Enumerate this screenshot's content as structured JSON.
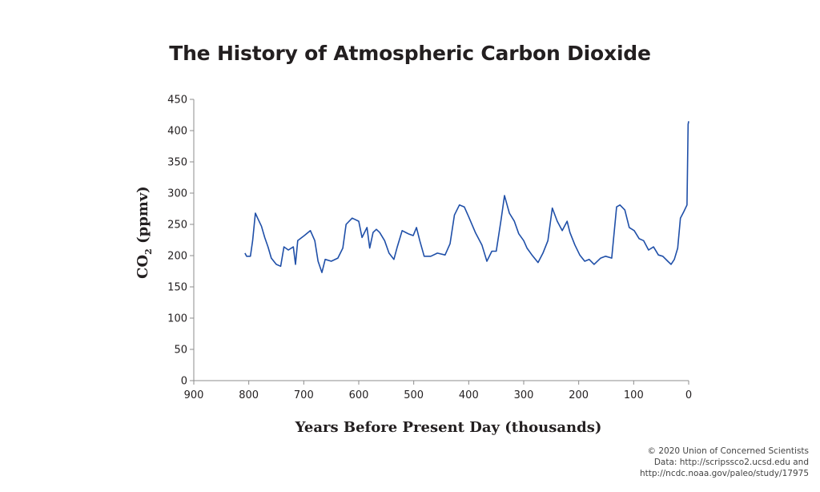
{
  "chart_data": {
    "type": "line",
    "title": "The History of Atmospheric Carbon Dioxide",
    "xlabel": "Years Before Present Day (thousands)",
    "ylabel": {
      "main": "CO",
      "subscript": "2",
      "suffix": " (ppmv)"
    },
    "xlim": [
      900,
      0
    ],
    "ylim": [
      0,
      450
    ],
    "x_ticks": [
      900,
      800,
      700,
      600,
      500,
      400,
      300,
      200,
      100,
      0
    ],
    "y_ticks": [
      0,
      50,
      100,
      150,
      200,
      250,
      300,
      350,
      400,
      450
    ],
    "grid": false,
    "legend": "none",
    "series": [
      {
        "name": "CO2 (ppmv)",
        "color": "#1f4fa8",
        "x": [
          807,
          804,
          797,
          793,
          788,
          784,
          777,
          771,
          765,
          759,
          750,
          742,
          736,
          728,
          719,
          715,
          711,
          699,
          688,
          680,
          674,
          667,
          661,
          650,
          638,
          629,
          623,
          612,
          600,
          594,
          585,
          580,
          574,
          568,
          562,
          553,
          545,
          536,
          530,
          521,
          510,
          501,
          495,
          489,
          481,
          469,
          457,
          443,
          434,
          426,
          417,
          408,
          400,
          388,
          376,
          367,
          358,
          350,
          341,
          335,
          326,
          317,
          309,
          300,
          294,
          285,
          274,
          265,
          256,
          248,
          239,
          230,
          221,
          216,
          207,
          198,
          189,
          181,
          172,
          160,
          151,
          140,
          131,
          125,
          116,
          108,
          99,
          90,
          82,
          73,
          64,
          55,
          47,
          38,
          32,
          26,
          20,
          15,
          9,
          3,
          1,
          0
        ],
        "y": [
          204,
          199,
          199,
          224,
          268,
          260,
          247,
          229,
          214,
          196,
          186,
          183,
          214,
          209,
          214,
          186,
          224,
          232,
          240,
          224,
          191,
          173,
          194,
          191,
          196,
          212,
          250,
          260,
          255,
          229,
          245,
          212,
          237,
          242,
          237,
          224,
          204,
          194,
          214,
          240,
          235,
          232,
          245,
          224,
          199,
          199,
          204,
          201,
          219,
          265,
          281,
          278,
          262,
          237,
          217,
          191,
          207,
          207,
          258,
          296,
          268,
          255,
          235,
          224,
          212,
          201,
          189,
          204,
          224,
          276,
          255,
          240,
          255,
          237,
          217,
          201,
          191,
          194,
          186,
          196,
          199,
          196,
          278,
          281,
          273,
          245,
          240,
          227,
          224,
          209,
          214,
          201,
          199,
          191,
          186,
          194,
          212,
          260,
          270,
          281,
          410,
          415
        ]
      }
    ]
  },
  "credits": {
    "line1": "© 2020 Union of Concerned Scientists",
    "line2": "Data:  http://scripssco2.ucsd.edu and",
    "line3": "http://ncdc.noaa.gov/paleo/study/17975"
  }
}
